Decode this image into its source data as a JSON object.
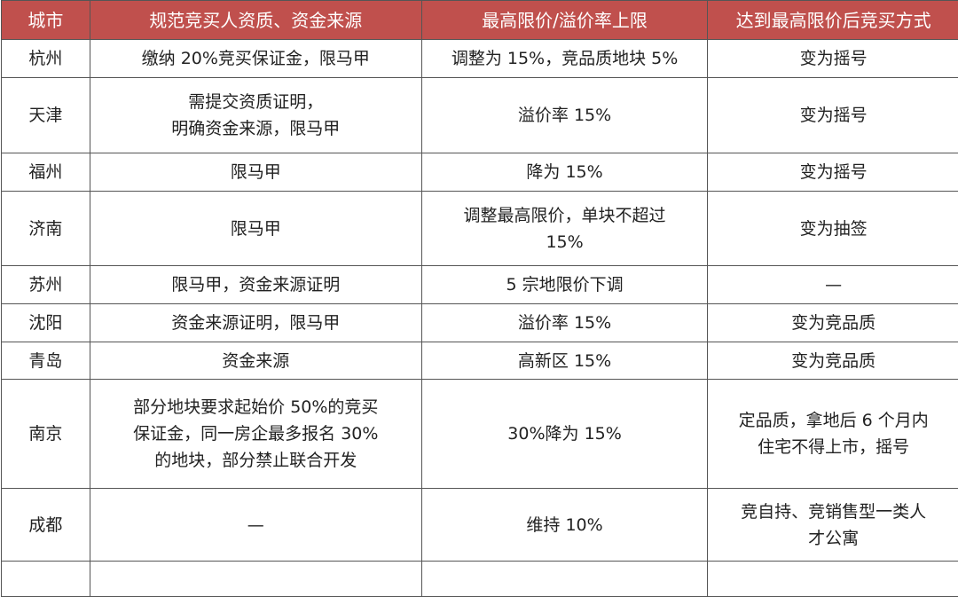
{
  "header_color": "#c0504d",
  "headers": [
    "城市",
    "规范竞买人资质、资金来源",
    "最高限价/溢价率上限",
    "达到最高限价后竞买方式"
  ],
  "rows": [
    {
      "city": "杭州",
      "qualification": [
        "缴纳 20%竞买保证金，限马甲"
      ],
      "cap": [
        "调整为 15%，竞品质地块 5%"
      ],
      "method": [
        "变为摇号"
      ]
    },
    {
      "city": "天津",
      "qualification": [
        "需提交资质证明，",
        "明确资金来源，限马甲"
      ],
      "cap": [
        "溢价率 15%"
      ],
      "method": [
        "变为摇号"
      ]
    },
    {
      "city": "福州",
      "qualification": [
        "限马甲"
      ],
      "cap": [
        "降为 15%"
      ],
      "method": [
        "变为摇号"
      ]
    },
    {
      "city": "济南",
      "qualification": [
        "限马甲"
      ],
      "cap": [
        "调整最高限价，单块不超过",
        "15%"
      ],
      "method": [
        "变为抽签"
      ]
    },
    {
      "city": "苏州",
      "qualification": [
        "限马甲，资金来源证明"
      ],
      "cap": [
        "5 宗地限价下调"
      ],
      "method": [
        "—"
      ]
    },
    {
      "city": "沈阳",
      "qualification": [
        "资金来源证明，限马甲"
      ],
      "cap": [
        "溢价率 15%"
      ],
      "method": [
        "变为竞品质"
      ]
    },
    {
      "city": "青岛",
      "qualification": [
        "资金来源"
      ],
      "cap": [
        "高新区 15%"
      ],
      "method": [
        "变为竞品质"
      ]
    },
    {
      "city": "南京",
      "qualification": [
        "部分地块要求起始价 50%的竞买",
        "保证金，同一房企最多报名 30%",
        "的地块，部分禁止联合开发"
      ],
      "cap": [
        "30%降为 15%"
      ],
      "method": [
        "定品质，拿地后 6 个月内",
        "住宅不得上市，摇号"
      ]
    },
    {
      "city": "成都",
      "qualification": [
        "—"
      ],
      "cap": [
        "维持 10%"
      ],
      "method": [
        "竞自持、竞销售型一类人",
        "才公寓"
      ]
    }
  ]
}
